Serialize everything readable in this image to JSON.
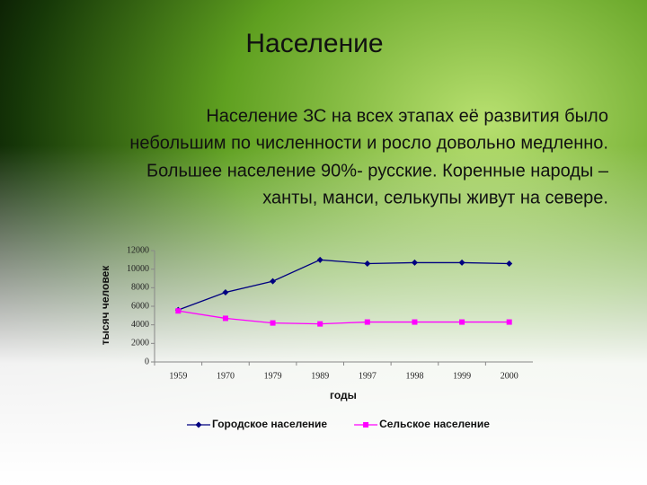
{
  "slide": {
    "title": "Население",
    "text_lines": [
      "Население ЗС на всех этапах её развития было",
      "небольшим по численности и росло довольно медленно.",
      "Большее население 90%- русские. Коренные народы –",
      "ханты, манси, селькупы живут на севере."
    ]
  },
  "chart_data": {
    "type": "line",
    "categories": [
      "1959",
      "1970",
      "1979",
      "1989",
      "1997",
      "1998",
      "1999",
      "2000"
    ],
    "series": [
      {
        "name": "Городское население",
        "color": "#000080",
        "values": [
          5600,
          7500,
          8700,
          11000,
          10600,
          10700,
          10700,
          10600
        ]
      },
      {
        "name": "Сельское население",
        "color": "#ff00ff",
        "values": [
          5500,
          4700,
          4200,
          4100,
          4300,
          4300,
          4300,
          4300
        ]
      }
    ],
    "ylim": [
      0,
      12000
    ],
    "yticks": [
      0,
      2000,
      4000,
      6000,
      8000,
      10000,
      12000
    ],
    "y_label": "тысяч человек",
    "x_label": "годы",
    "legend": "bottom"
  }
}
